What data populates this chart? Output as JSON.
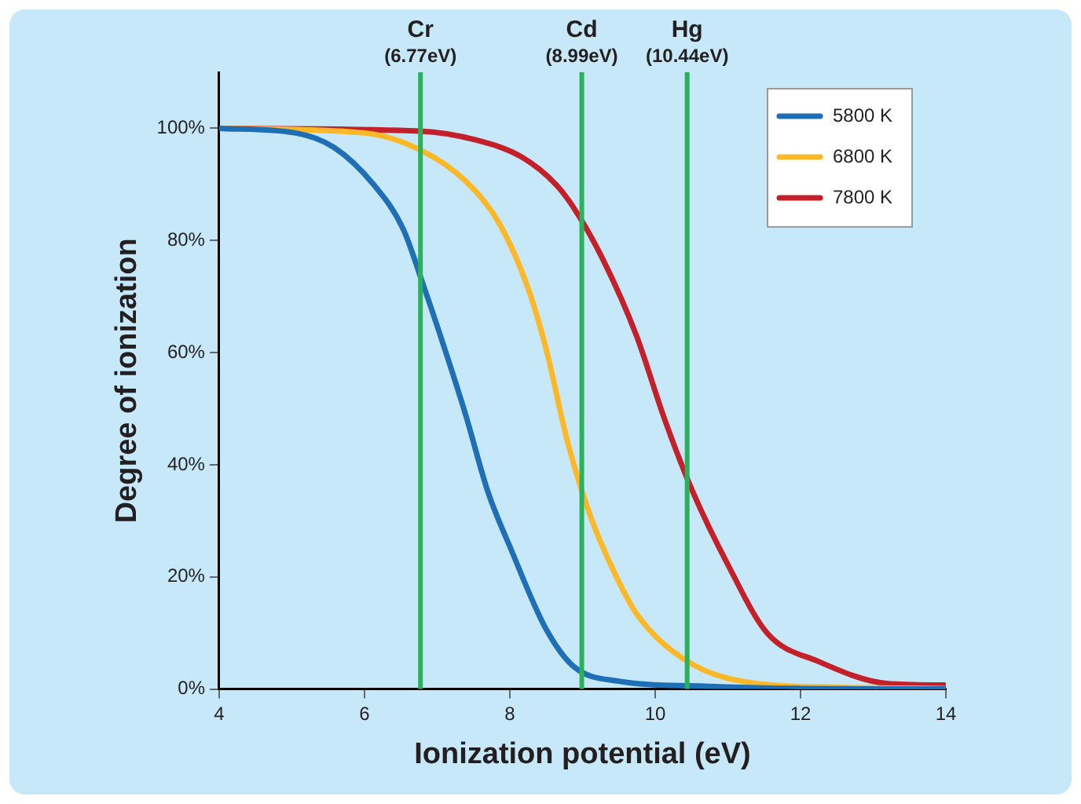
{
  "chart_data": {
    "type": "line",
    "xlabel": "Ionization potential (eV)",
    "ylabel": "Degree of ionization",
    "xlim": [
      4,
      14
    ],
    "xticks": [
      4,
      6,
      8,
      10,
      12,
      14
    ],
    "ylim": [
      0,
      110
    ],
    "yticks": [
      {
        "value": 0,
        "label": "0%"
      },
      {
        "value": 20,
        "label": "20%"
      },
      {
        "value": 40,
        "label": "40%"
      },
      {
        "value": 60,
        "label": "60%"
      },
      {
        "value": 80,
        "label": "80%"
      },
      {
        "value": 100,
        "label": "100%"
      }
    ],
    "grid": false,
    "legend": "top right",
    "marker": "none",
    "line_style": "solid",
    "series": [
      {
        "name": "5800 K",
        "color": "#1f6fb6",
        "x": [
          4,
          5.04,
          5.58,
          6.13,
          6.53,
          6.8,
          7.07,
          7.39,
          7.7,
          8.02,
          8.49,
          8.88,
          9.5,
          10.68,
          12,
          14
        ],
        "values": [
          100,
          99.2,
          96.6,
          89.9,
          82.1,
          72.4,
          62,
          49,
          35.1,
          24.8,
          10.9,
          4,
          1.4,
          0.5,
          0.1,
          0
        ]
      },
      {
        "name": "6800 K",
        "color": "#fdb827",
        "x": [
          4,
          5.98,
          6.76,
          7.39,
          7.86,
          8.25,
          8.49,
          8.8,
          9.11,
          9.42,
          9.74,
          10.45,
          11.39,
          12.56,
          13.98
        ],
        "values": [
          100,
          99.2,
          96.2,
          90.6,
          82.9,
          71.5,
          61.1,
          43.8,
          30.8,
          21.3,
          13.5,
          4.9,
          1,
          0.3,
          0.1
        ]
      },
      {
        "name": "7800 K",
        "color": "#c4202a",
        "x": [
          4,
          6.76,
          7.54,
          8.16,
          8.64,
          8.88,
          9.27,
          9.74,
          10.13,
          10.52,
          11,
          11.54,
          12.25,
          13.19,
          13.98
        ],
        "values": [
          100,
          99.5,
          97.9,
          94.9,
          89.9,
          85.8,
          76.9,
          63.1,
          48.1,
          35.1,
          22.2,
          10,
          4.9,
          1,
          0.7
        ]
      }
    ],
    "ref_lines": [
      {
        "axis": "x",
        "value": 6.77,
        "label": "Cr\n(6.77eV)",
        "color": "#2bb05c"
      },
      {
        "axis": "x",
        "value": 8.99,
        "label": "Cd\n(8.99eV)",
        "color": "#2bb05c"
      },
      {
        "axis": "x",
        "value": 10.44,
        "label": "Hg\n(10.44eV)",
        "color": "#2bb05c"
      }
    ]
  }
}
